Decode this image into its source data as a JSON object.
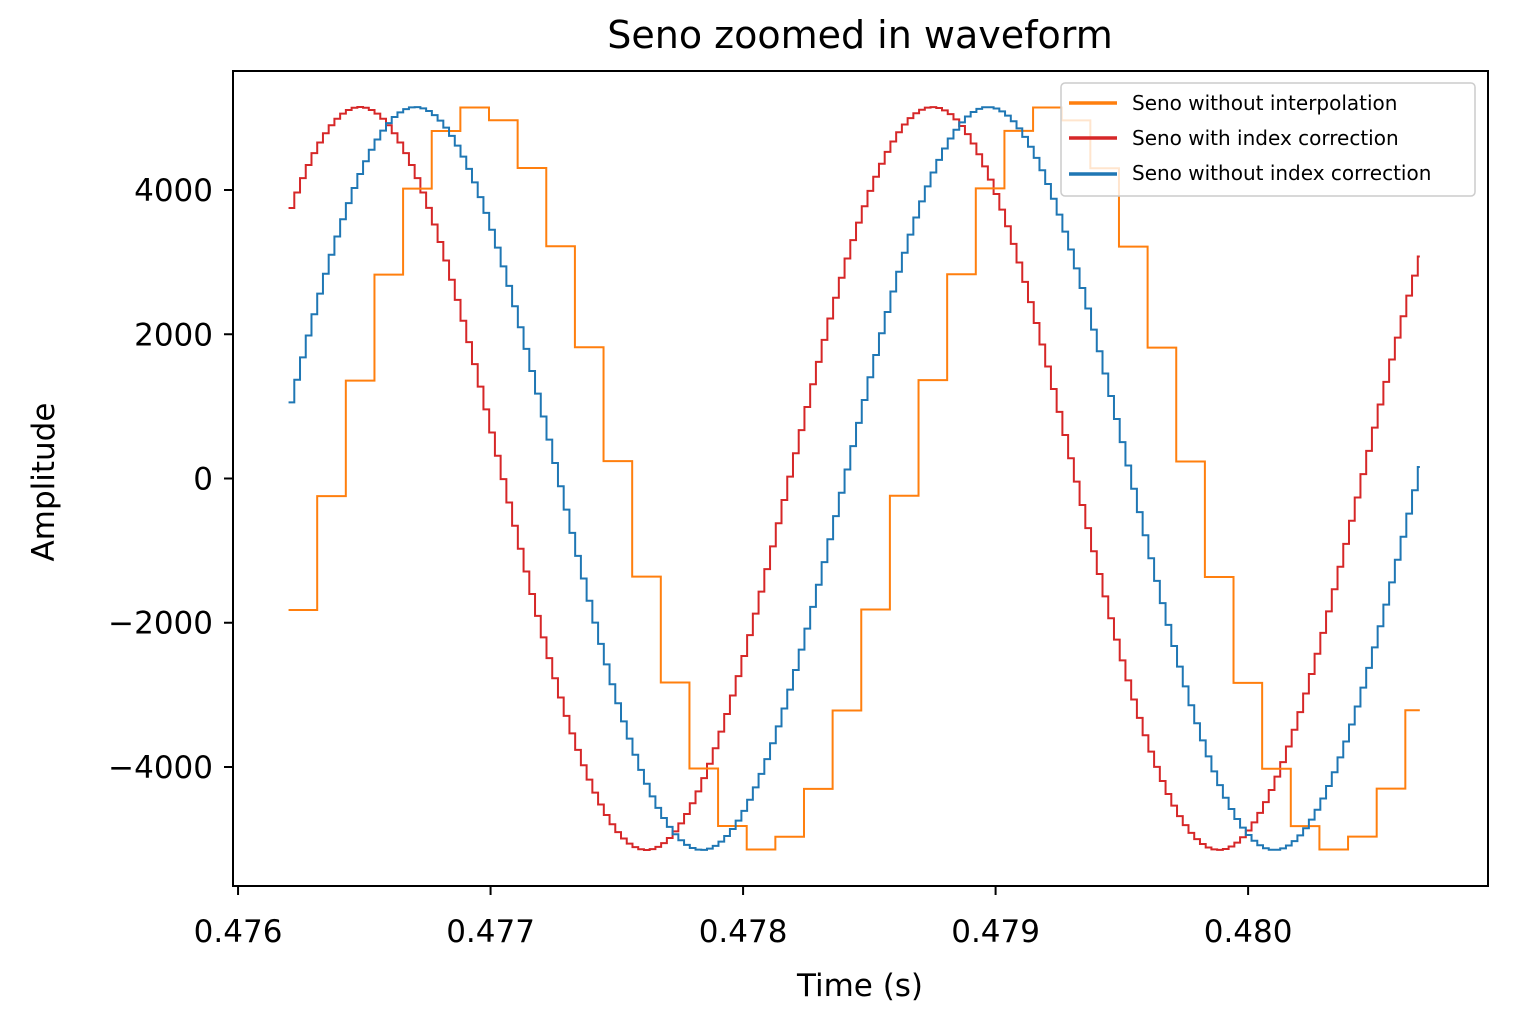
{
  "chart_data": {
    "type": "line",
    "title": "Seno zoomed in waveform",
    "xlabel": "Time (s)",
    "ylabel": "Amplitude",
    "xlim": [
      0.47598,
      0.48095
    ],
    "ylim": [
      -5650,
      5650
    ],
    "xticks": [
      0.476,
      0.477,
      0.478,
      0.479,
      0.48
    ],
    "xtick_labels": [
      "0.476",
      "0.477",
      "0.478",
      "0.479",
      "0.480"
    ],
    "yticks": [
      4000,
      2000,
      0,
      -2000,
      -4000
    ],
    "ytick_labels": [
      "4000",
      "2000",
      "0",
      "−2000",
      "−4000"
    ],
    "grid": false,
    "legend_position": "top-right",
    "waveform": {
      "amplitude": 5150,
      "frequency_hz": 441,
      "x_start": 0.4762,
      "x_end": 0.48068
    },
    "series": [
      {
        "name": "Seno without interpolation",
        "color": "#ff7f0e",
        "style": "steps-post",
        "step_s": 0.0001134,
        "phase_shift_s": 0.000425
      },
      {
        "name": "Seno with index correction",
        "color": "#d62728",
        "style": "steps-post",
        "step_s": 2.27e-05,
        "phase_shift_s": 0.0
      },
      {
        "name": "Seno without index correction",
        "color": "#1f77b4",
        "style": "steps-post",
        "step_s": 2.27e-05,
        "phase_shift_s": 0.00022
      }
    ]
  }
}
